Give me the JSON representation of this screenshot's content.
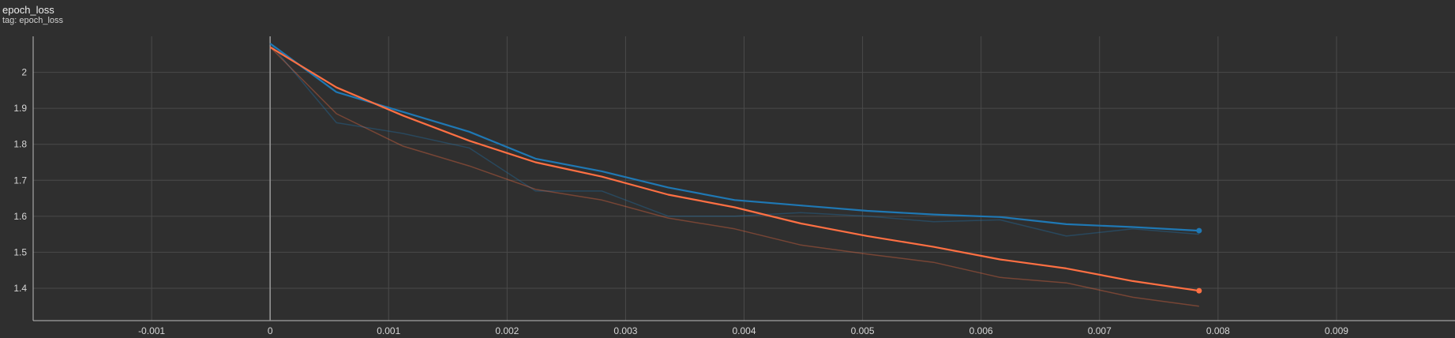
{
  "header": {
    "title": "epoch_loss",
    "subtitle": "tag: epoch_loss"
  },
  "colors": {
    "background": "#2f2f2f",
    "grid": "#4a4a4a",
    "axis": "#bdbdbd",
    "series_blue": "#1f78b4",
    "series_orange": "#ff7043"
  },
  "chart_data": {
    "type": "line",
    "title": "epoch_loss",
    "subtitle": "tag: epoch_loss",
    "xlabel": "",
    "ylabel": "",
    "xlim": [
      -0.002,
      0.01
    ],
    "ylim": [
      1.31,
      2.1
    ],
    "grid": true,
    "x_ticks": [
      -0.001,
      0,
      0.001,
      0.002,
      0.003,
      0.004,
      0.005,
      0.006,
      0.007,
      0.008,
      0.009
    ],
    "x_tick_labels": [
      "-0.001",
      "0",
      "0.001",
      "0.002",
      "0.003",
      "0.004",
      "0.005",
      "0.006",
      "0.007",
      "0.008",
      "0.009"
    ],
    "y_ticks": [
      1.4,
      1.5,
      1.6,
      1.7,
      1.8,
      1.9,
      2.0
    ],
    "y_tick_labels": [
      "1.4",
      "1.5",
      "1.6",
      "1.7",
      "1.8",
      "1.9",
      "2"
    ],
    "series": [
      {
        "color": "#1f78b4",
        "raw": [
          [
            0,
            2.08
          ],
          [
            0.00056,
            1.86
          ],
          [
            0.00112,
            1.83
          ],
          [
            0.00168,
            1.79
          ],
          [
            0.00224,
            1.67
          ],
          [
            0.0028,
            1.67
          ],
          [
            0.00336,
            1.6
          ],
          [
            0.00392,
            1.6
          ],
          [
            0.00448,
            1.61
          ],
          [
            0.00504,
            1.6
          ],
          [
            0.0056,
            1.585
          ],
          [
            0.00616,
            1.59
          ],
          [
            0.00672,
            1.545
          ],
          [
            0.00728,
            1.565
          ],
          [
            0.00784,
            1.55
          ]
        ],
        "smoothed": [
          [
            0,
            2.08
          ],
          [
            0.00056,
            1.945
          ],
          [
            0.00112,
            1.89
          ],
          [
            0.00168,
            1.835
          ],
          [
            0.00224,
            1.76
          ],
          [
            0.0028,
            1.725
          ],
          [
            0.00336,
            1.68
          ],
          [
            0.00392,
            1.645
          ],
          [
            0.00448,
            1.63
          ],
          [
            0.00504,
            1.615
          ],
          [
            0.0056,
            1.605
          ],
          [
            0.00616,
            1.598
          ],
          [
            0.00672,
            1.578
          ],
          [
            0.00728,
            1.57
          ],
          [
            0.00784,
            1.56
          ]
        ]
      },
      {
        "color": "#ff7043",
        "raw": [
          [
            0,
            2.07
          ],
          [
            0.00056,
            1.885
          ],
          [
            0.00112,
            1.795
          ],
          [
            0.00168,
            1.74
          ],
          [
            0.00224,
            1.675
          ],
          [
            0.0028,
            1.645
          ],
          [
            0.00336,
            1.595
          ],
          [
            0.00392,
            1.565
          ],
          [
            0.00448,
            1.52
          ],
          [
            0.00504,
            1.495
          ],
          [
            0.0056,
            1.472
          ],
          [
            0.00616,
            1.43
          ],
          [
            0.00672,
            1.415
          ],
          [
            0.00728,
            1.375
          ],
          [
            0.00784,
            1.35
          ]
        ],
        "smoothed": [
          [
            0,
            2.07
          ],
          [
            0.00056,
            1.958
          ],
          [
            0.00112,
            1.88
          ],
          [
            0.00168,
            1.81
          ],
          [
            0.00224,
            1.75
          ],
          [
            0.0028,
            1.71
          ],
          [
            0.00336,
            1.66
          ],
          [
            0.00392,
            1.625
          ],
          [
            0.00448,
            1.58
          ],
          [
            0.00504,
            1.545
          ],
          [
            0.0056,
            1.515
          ],
          [
            0.00616,
            1.48
          ],
          [
            0.00672,
            1.455
          ],
          [
            0.00728,
            1.42
          ],
          [
            0.00784,
            1.393
          ]
        ]
      }
    ]
  }
}
